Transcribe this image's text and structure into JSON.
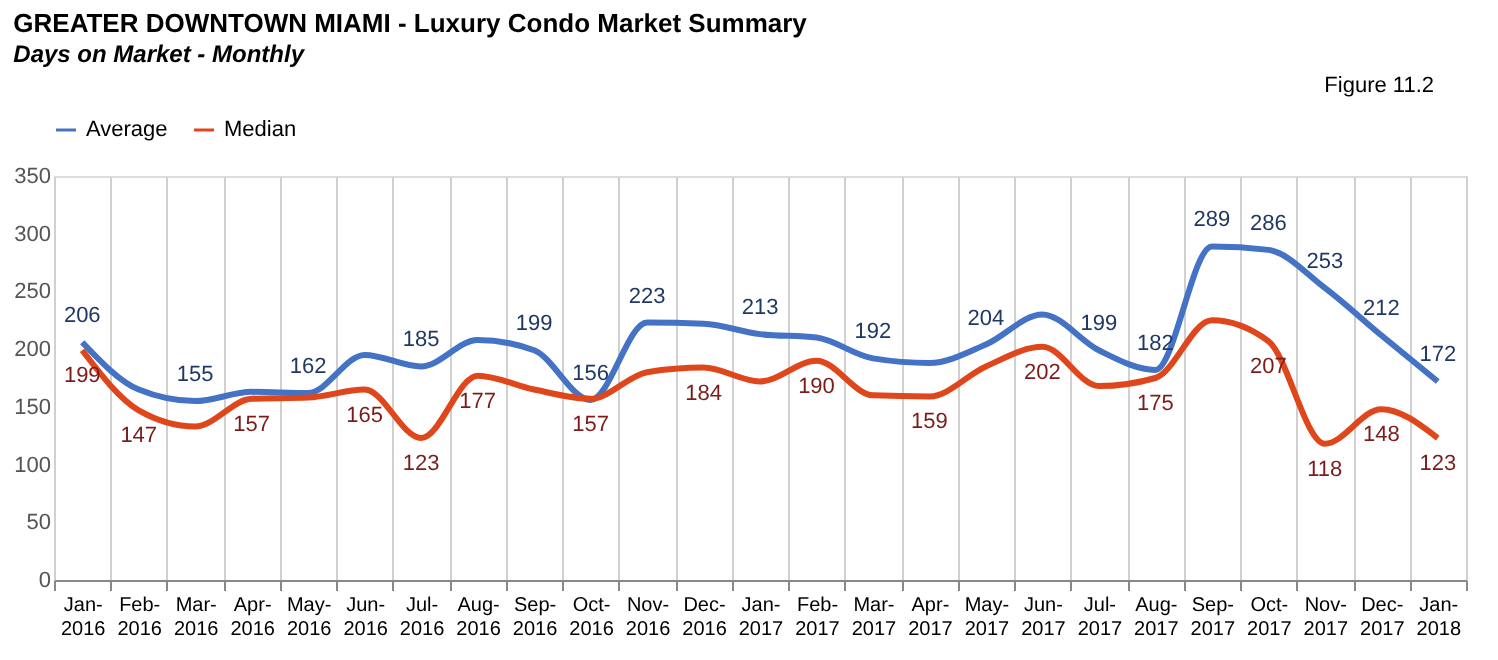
{
  "chart_data": {
    "type": "line",
    "title": "GREATER DOWNTOWN MIAMI - Luxury Condo Market Summary",
    "subtitle": "Days on Market - Monthly",
    "annotations": [
      "Figure 11.2"
    ],
    "categories": [
      "Jan-2016",
      "Feb-2016",
      "Mar-2016",
      "Apr-2016",
      "May-2016",
      "Jun-2016",
      "Jul-2016",
      "Aug-2016",
      "Sep-2016",
      "Oct-2016",
      "Nov-2016",
      "Dec-2016",
      "Jan-2017",
      "Feb-2017",
      "Mar-2017",
      "Apr-2017",
      "May-2017",
      "Jun-2017",
      "Jul-2017",
      "Aug-2017",
      "Sep-2017",
      "Oct-2017",
      "Nov-2017",
      "Dec-2017",
      "Jan-2018"
    ],
    "series": [
      {
        "name": "Average",
        "color": "#4472c4",
        "values": [
          206,
          165,
          155,
          163,
          162,
          195,
          185,
          208,
          199,
          156,
          223,
          222,
          213,
          210,
          192,
          188,
          204,
          230,
          199,
          182,
          289,
          286,
          253,
          212,
          172
        ],
        "value_labels": [
          "206",
          null,
          "155",
          null,
          "162",
          null,
          "185",
          null,
          "199",
          "156",
          "223",
          null,
          "213",
          null,
          "192",
          null,
          "204",
          null,
          "199",
          "182",
          "289",
          "286",
          "253",
          "212",
          "172"
        ]
      },
      {
        "name": "Median",
        "color": "#e0461c",
        "values": [
          199,
          147,
          133,
          157,
          158,
          165,
          123,
          177,
          165,
          157,
          180,
          184,
          172,
          190,
          160,
          159,
          185,
          202,
          168,
          175,
          225,
          207,
          118,
          148,
          123
        ],
        "value_labels": [
          "199",
          "147",
          null,
          "157",
          null,
          "165",
          "123",
          "177",
          null,
          "157",
          null,
          "184",
          null,
          "190",
          null,
          "159",
          null,
          "202",
          null,
          "175",
          null,
          "207",
          "118",
          "148",
          "123"
        ]
      }
    ],
    "ylim": [
      0,
      350
    ],
    "yticks": [
      0,
      50,
      100,
      150,
      200,
      250,
      300,
      350
    ],
    "grid": "x",
    "legend": "top",
    "marker": "none",
    "line_style": "solid"
  }
}
